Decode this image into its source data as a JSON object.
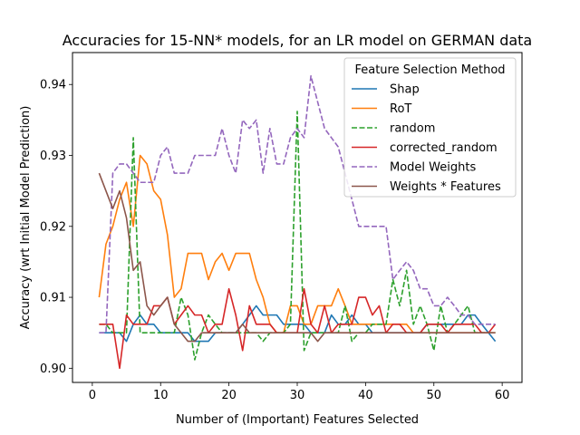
{
  "chart_data": {
    "type": "line",
    "title": "Accuracies for 15-NN* models, for an LR model on GERMAN data",
    "xlabel": "Number of (Important) Features Selected",
    "ylabel": "Accuracy (wrt Initial Model Prediction)",
    "xlim": [
      -2.9,
      62.9
    ],
    "ylim": [
      0.898,
      0.9445
    ],
    "xticks": [
      0,
      10,
      20,
      30,
      40,
      50,
      60
    ],
    "yticks": [
      0.9,
      0.91,
      0.92,
      0.93,
      0.94
    ],
    "ytick_labels": [
      "0.90",
      "0.91",
      "0.92",
      "0.93",
      "0.94"
    ],
    "grid": false,
    "legend": {
      "title": "Feature Selection Method",
      "placement": "upper-right"
    },
    "x": [
      1,
      2,
      3,
      4,
      5,
      6,
      7,
      8,
      9,
      10,
      11,
      12,
      13,
      14,
      15,
      16,
      17,
      18,
      19,
      20,
      21,
      22,
      23,
      24,
      25,
      26,
      27,
      28,
      29,
      30,
      31,
      32,
      33,
      34,
      35,
      36,
      37,
      38,
      39,
      40,
      41,
      42,
      43,
      44,
      45,
      46,
      47,
      48,
      49,
      50,
      51,
      52,
      53,
      54,
      55,
      56,
      57,
      58,
      59
    ],
    "series": [
      {
        "name": "Shap",
        "color": "#1f77b4",
        "dash": "solid",
        "values": [
          0.905,
          0.905,
          0.905,
          0.905,
          0.9038,
          0.9062,
          0.9075,
          0.9062,
          0.9062,
          0.905,
          0.905,
          0.905,
          0.905,
          0.905,
          0.9038,
          0.9038,
          0.9038,
          0.905,
          0.905,
          0.905,
          0.905,
          0.9062,
          0.9075,
          0.9088,
          0.9075,
          0.9075,
          0.9075,
          0.9062,
          0.9062,
          0.9062,
          0.9062,
          0.905,
          0.905,
          0.905,
          0.9075,
          0.9062,
          0.9062,
          0.9075,
          0.9062,
          0.9062,
          0.905,
          0.905,
          0.905,
          0.905,
          0.905,
          0.905,
          0.905,
          0.905,
          0.9062,
          0.9062,
          0.9062,
          0.9062,
          0.9062,
          0.9062,
          0.9075,
          0.9075,
          0.9062,
          0.905,
          0.9038
        ]
      },
      {
        "name": "RoT",
        "color": "#ff7f0e",
        "dash": "solid",
        "values": [
          0.91,
          0.9175,
          0.92,
          0.9238,
          0.9262,
          0.92,
          0.93,
          0.9288,
          0.925,
          0.9238,
          0.9188,
          0.91,
          0.9112,
          0.9162,
          0.9162,
          0.9162,
          0.9125,
          0.915,
          0.9162,
          0.9138,
          0.9162,
          0.9162,
          0.9162,
          0.9125,
          0.91,
          0.9062,
          0.905,
          0.905,
          0.9088,
          0.9088,
          0.9062,
          0.9062,
          0.9088,
          0.9088,
          0.9088,
          0.9112,
          0.9088,
          0.9062,
          0.9062,
          0.9062,
          0.9062,
          0.9062,
          0.9062,
          0.9062,
          0.9062,
          0.9062,
          0.905,
          0.905,
          0.905,
          0.905,
          0.905,
          0.905,
          0.905,
          0.905,
          0.905,
          0.905,
          0.905,
          0.905,
          0.905
        ]
      },
      {
        "name": "random",
        "color": "#2ca02c",
        "dash": "dashed",
        "values": [
          0.9062,
          0.9062,
          0.905,
          0.905,
          0.905,
          0.9325,
          0.905,
          0.905,
          0.905,
          0.905,
          0.905,
          0.905,
          0.91,
          0.9075,
          0.9012,
          0.905,
          0.9075,
          0.9062,
          0.905,
          0.905,
          0.905,
          0.905,
          0.905,
          0.905,
          0.9038,
          0.905,
          0.905,
          0.905,
          0.9062,
          0.9362,
          0.9025,
          0.905,
          0.905,
          0.905,
          0.905,
          0.905,
          0.9088,
          0.9038,
          0.905,
          0.905,
          0.9062,
          0.9062,
          0.9062,
          0.9125,
          0.9088,
          0.9138,
          0.9062,
          0.9088,
          0.9062,
          0.9025,
          0.9088,
          0.905,
          0.9062,
          0.9075,
          0.9088,
          0.905,
          0.905,
          0.905,
          0.905
        ]
      },
      {
        "name": "corrected_random",
        "color": "#d62728",
        "dash": "solid",
        "values": [
          0.9062,
          0.9062,
          0.9062,
          0.9,
          0.9075,
          0.9062,
          0.9062,
          0.9062,
          0.9088,
          0.9088,
          0.91,
          0.9062,
          0.9075,
          0.9088,
          0.9075,
          0.9075,
          0.905,
          0.9062,
          0.9062,
          0.9112,
          0.9075,
          0.9025,
          0.9088,
          0.9062,
          0.9062,
          0.9062,
          0.905,
          0.905,
          0.905,
          0.905,
          0.9112,
          0.9062,
          0.905,
          0.9088,
          0.905,
          0.9062,
          0.9062,
          0.9062,
          0.91,
          0.91,
          0.9075,
          0.9088,
          0.905,
          0.9062,
          0.9062,
          0.905,
          0.905,
          0.905,
          0.9062,
          0.9062,
          0.9062,
          0.905,
          0.9062,
          0.9062,
          0.9062,
          0.9062,
          0.905,
          0.905,
          0.9062
        ]
      },
      {
        "name": "Model Weights",
        "color": "#9467bd",
        "dash": "dashed",
        "values": [
          0.905,
          0.905,
          0.9275,
          0.9288,
          0.9288,
          0.9275,
          0.9262,
          0.9262,
          0.9262,
          0.93,
          0.9312,
          0.9275,
          0.9275,
          0.9275,
          0.93,
          0.93,
          0.93,
          0.93,
          0.9338,
          0.93,
          0.9275,
          0.935,
          0.9338,
          0.935,
          0.9275,
          0.9338,
          0.9288,
          0.9288,
          0.9325,
          0.9338,
          0.9325,
          0.9412,
          0.9375,
          0.9338,
          0.9325,
          0.9312,
          0.9275,
          0.9238,
          0.92,
          0.92,
          0.92,
          0.92,
          0.92,
          0.9125,
          0.9138,
          0.915,
          0.9138,
          0.9112,
          0.9112,
          0.9088,
          0.9088,
          0.91,
          0.9088,
          0.9075,
          0.9075,
          0.9062,
          0.9062,
          0.9062,
          0.9062
        ]
      },
      {
        "name": "Weights * Features",
        "color": "#8c564b",
        "dash": "solid",
        "values": [
          0.9275,
          0.925,
          0.9225,
          0.925,
          0.9212,
          0.9138,
          0.915,
          0.9088,
          0.9075,
          0.9088,
          0.91,
          0.9062,
          0.905,
          0.9038,
          0.9038,
          0.905,
          0.905,
          0.905,
          0.905,
          0.905,
          0.905,
          0.9062,
          0.905,
          0.905,
          0.905,
          0.905,
          0.905,
          0.905,
          0.905,
          0.905,
          0.905,
          0.905,
          0.9038,
          0.905,
          0.905,
          0.905,
          0.905,
          0.905,
          0.905,
          0.905,
          0.905,
          0.905,
          0.905,
          0.905,
          0.905,
          0.905,
          0.905,
          0.905,
          0.905,
          0.905,
          0.905,
          0.905,
          0.905,
          0.905,
          0.905,
          0.905,
          0.905,
          0.905,
          0.905
        ]
      }
    ]
  }
}
